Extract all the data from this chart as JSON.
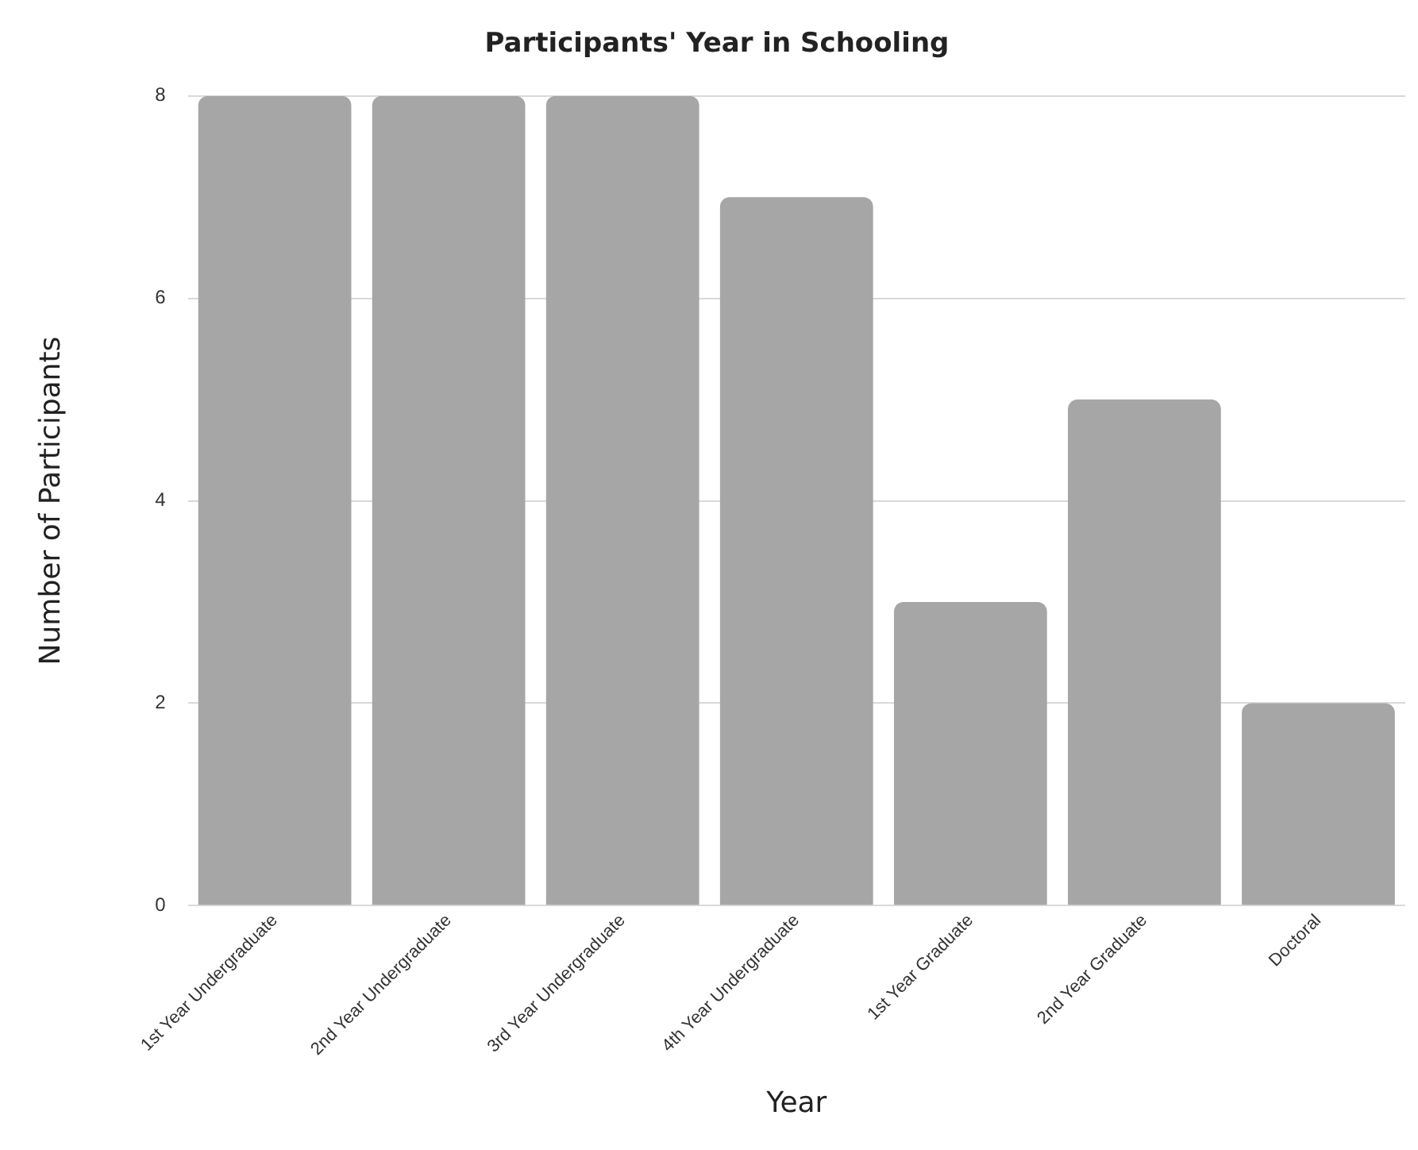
{
  "chart_data": {
    "type": "bar",
    "title": "Participants' Year in Schooling",
    "xlabel": "Year",
    "ylabel": "Number of Participants",
    "categories": [
      "1st Year Undergraduate",
      "2nd Year Undergraduate",
      "3rd Year Undergraduate",
      "4th Year Undergraduate",
      "1st Year Graduate",
      "2nd Year Graduate",
      "Doctoral"
    ],
    "values": [
      8,
      8,
      8,
      7,
      3,
      5,
      2
    ],
    "color": "#a6a6a6",
    "ylim": [
      0,
      8
    ],
    "yticks": [
      0,
      2,
      4,
      6,
      8
    ],
    "grid": "y",
    "legend": false
  }
}
